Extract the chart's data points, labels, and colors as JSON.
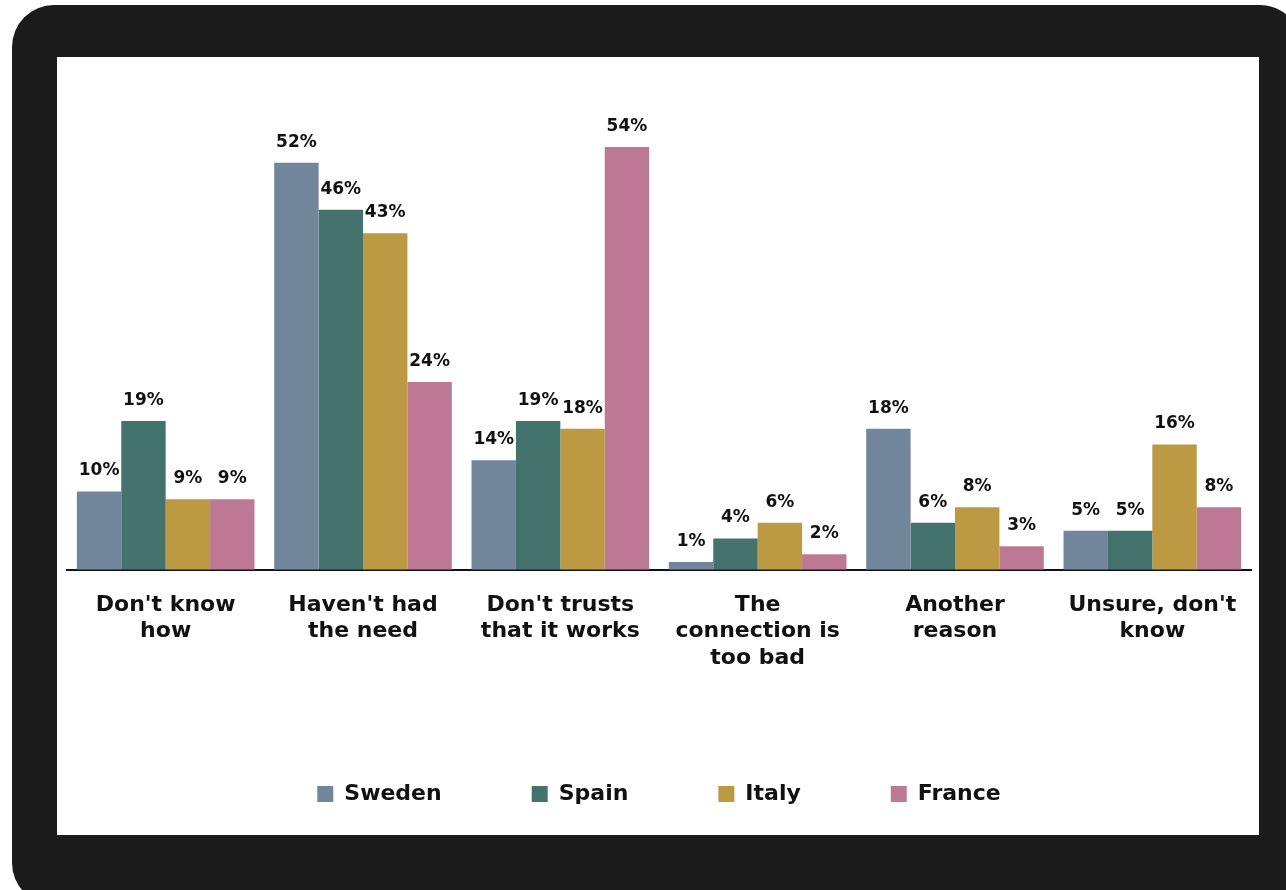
{
  "chart_data": {
    "type": "bar",
    "categories": [
      "Don't know how",
      "Haven't had the need",
      "Don't trusts that it works",
      "The connection is too bad",
      "Another reason",
      "Unsure, don't know"
    ],
    "series": [
      {
        "name": "Sweden",
        "color": "#71869b",
        "values": [
          10,
          52,
          14,
          1,
          18,
          5
        ],
        "value_labels": [
          "10%",
          "52%",
          "14%",
          "1%",
          "18%",
          "5%"
        ]
      },
      {
        "name": "Spain",
        "color": "#44736d",
        "values": [
          19,
          46,
          19,
          4,
          6,
          5
        ],
        "value_labels": [
          "19%",
          "46%",
          "19%",
          "4%",
          "6%",
          "5%"
        ]
      },
      {
        "name": "Italy",
        "color": "#bb9a43",
        "values": [
          9,
          43,
          18,
          6,
          8,
          16
        ],
        "value_labels": [
          "9%",
          "43%",
          "18%",
          "6%",
          "8%",
          "16%"
        ]
      },
      {
        "name": "France",
        "color": "#bd7893",
        "values": [
          9,
          24,
          54,
          2,
          3,
          8
        ],
        "value_labels": [
          "9%",
          "24%",
          "54%",
          "2%",
          "3%",
          "8%"
        ]
      }
    ],
    "legend": "bottom"
  }
}
